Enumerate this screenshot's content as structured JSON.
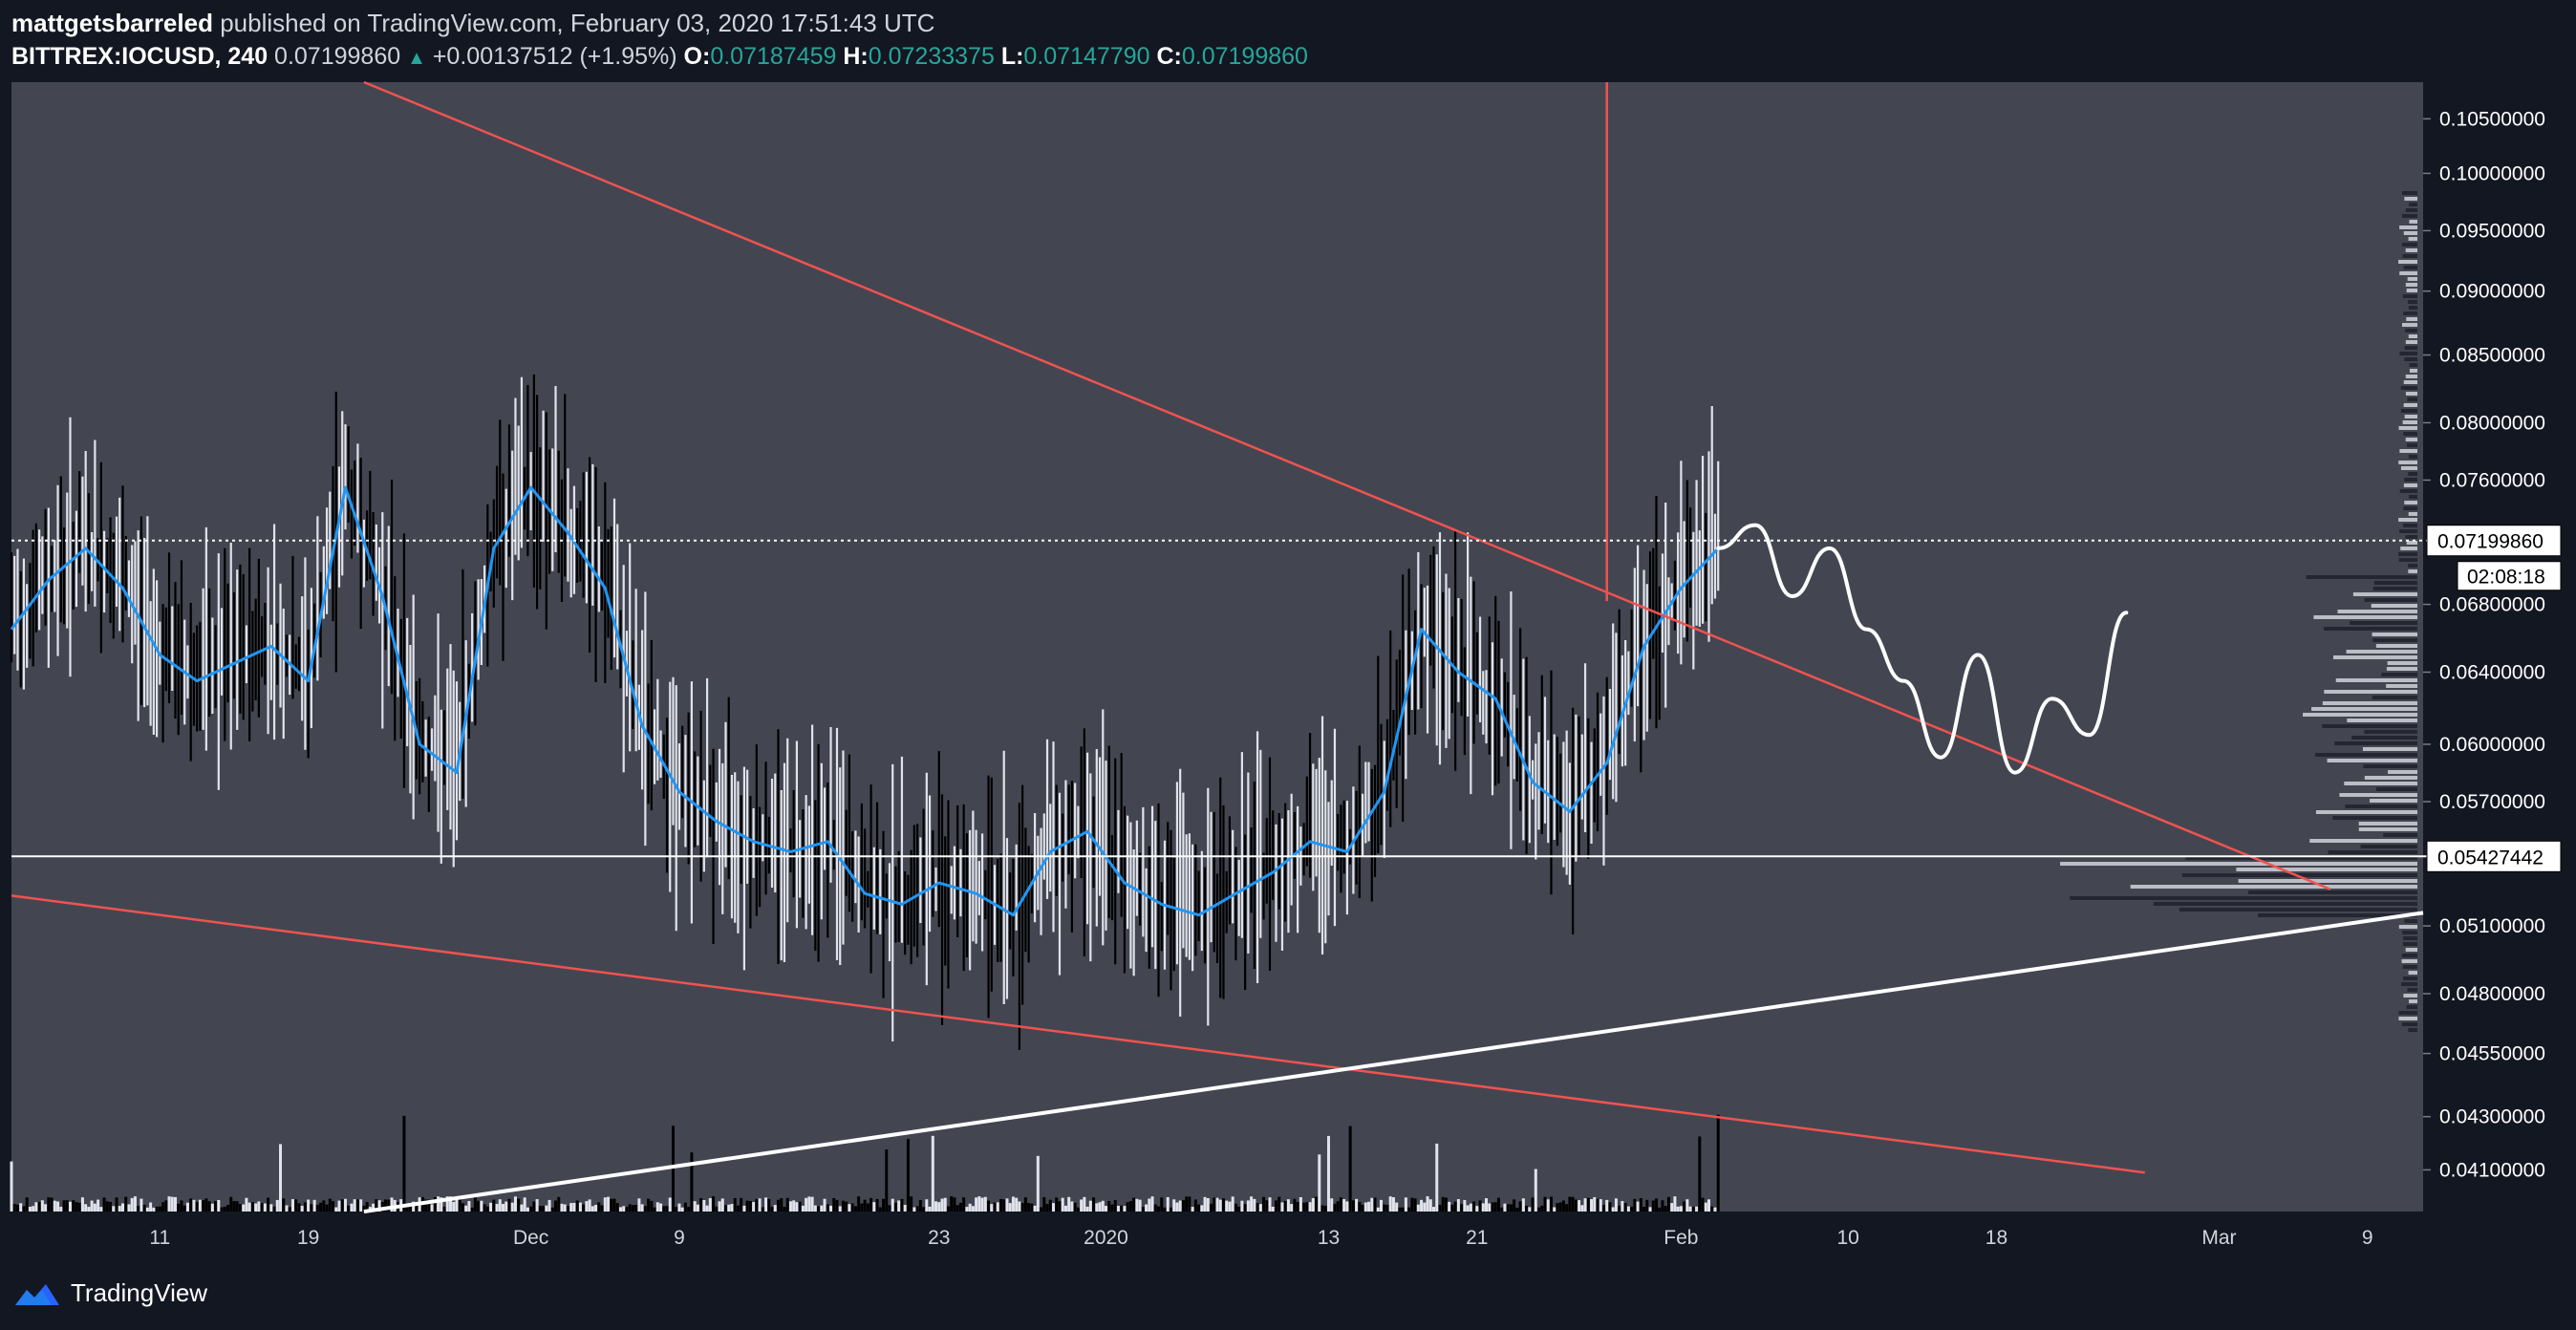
{
  "header": {
    "author": "mattgetsbarreled",
    "published": " published on TradingView.com, February 03, 2020 17:51:43 UTC",
    "symbol": "BITTREX:IOCUSD",
    "interval": ", 240",
    "last": " 0.07199860 ",
    "change": " +0.00137512 (+1.95%) ",
    "open_label": "O:",
    "open": "0.07187459",
    "high_label": "H:",
    "high": "0.07233375",
    "low_label": "L:",
    "low": "0.07147790",
    "close_label": "C:",
    "close": "0.07199860"
  },
  "footer": {
    "brand": "TradingView"
  },
  "colors": {
    "plot_bg": "#434651",
    "page_bg": "#131722",
    "ma_line": "#2196f3",
    "trendline_red": "#ef5350",
    "forecast": "#ffffff",
    "accent_up": "#26a69a"
  },
  "chart_data": {
    "type": "line",
    "y_axis": {
      "scale": "log",
      "range": [
        0.0395,
        0.1085
      ],
      "ticks": [
        "0.10500000",
        "0.10000000",
        "0.09500000",
        "0.09000000",
        "0.08500000",
        "0.08000000",
        "0.07600000",
        "0.06800000",
        "0.06400000",
        "0.06000000",
        "0.05700000",
        "0.05100000",
        "0.04800000",
        "0.04550000",
        "0.04300000",
        "0.04100000"
      ]
    },
    "x_axis": {
      "range": [
        "2019-11-03",
        "2020-03-12"
      ],
      "ticks": [
        {
          "label": "11",
          "date": "2019-11-11"
        },
        {
          "label": "19",
          "date": "2019-11-19"
        },
        {
          "label": "Dec",
          "date": "2019-12-01"
        },
        {
          "label": "9",
          "date": "2019-12-09"
        },
        {
          "label": "23",
          "date": "2019-12-23"
        },
        {
          "label": "2020",
          "date": "2020-01-01"
        },
        {
          "label": "13",
          "date": "2020-01-13"
        },
        {
          "label": "21",
          "date": "2020-01-21"
        },
        {
          "label": "Feb",
          "date": "2020-02-01"
        },
        {
          "label": "10",
          "date": "2020-02-10"
        },
        {
          "label": "18",
          "date": "2020-02-18"
        },
        {
          "label": "Mar",
          "date": "2020-03-01"
        },
        {
          "label": "9",
          "date": "2020-03-09"
        }
      ]
    },
    "price_lines": [
      {
        "value": 0.0719986,
        "label": "0.07199860",
        "style": "dotted"
      },
      {
        "value": 0.05427442,
        "label": "0.05427442",
        "style": "solid"
      }
    ],
    "countdown": "02:08:18",
    "series": [
      {
        "type": "ma",
        "color": "#2196f3",
        "x": [
          "2019-11-03",
          "2019-11-05",
          "2019-11-07",
          "2019-11-09",
          "2019-11-11",
          "2019-11-13",
          "2019-11-15",
          "2019-11-17",
          "2019-11-19",
          "2019-11-21",
          "2019-11-23",
          "2019-11-25",
          "2019-11-27",
          "2019-11-29",
          "2019-12-01",
          "2019-12-03",
          "2019-12-05",
          "2019-12-07",
          "2019-12-09",
          "2019-12-11",
          "2019-12-13",
          "2019-12-15",
          "2019-12-17",
          "2019-12-19",
          "2019-12-21",
          "2019-12-23",
          "2019-12-25",
          "2019-12-27",
          "2019-12-29",
          "2019-12-31",
          "2020-01-02",
          "2020-01-04",
          "2020-01-06",
          "2020-01-08",
          "2020-01-10",
          "2020-01-12",
          "2020-01-14",
          "2020-01-16",
          "2020-01-18",
          "2020-01-20",
          "2020-01-22",
          "2020-01-24",
          "2020-01-26",
          "2020-01-28",
          "2020-01-30",
          "2020-02-01",
          "2020-02-03"
        ],
        "y": [
          0.0665,
          0.0695,
          0.0715,
          0.069,
          0.065,
          0.0635,
          0.0645,
          0.0655,
          0.0635,
          0.0755,
          0.0685,
          0.06,
          0.0585,
          0.0715,
          0.0755,
          0.0725,
          0.069,
          0.061,
          0.0575,
          0.056,
          0.055,
          0.0545,
          0.055,
          0.0525,
          0.052,
          0.053,
          0.0525,
          0.0515,
          0.0545,
          0.0555,
          0.053,
          0.052,
          0.0515,
          0.0525,
          0.0535,
          0.055,
          0.0545,
          0.0575,
          0.0665,
          0.064,
          0.0625,
          0.058,
          0.0565,
          0.059,
          0.0655,
          0.069,
          0.0715
        ]
      },
      {
        "type": "trendline",
        "name": "",
        "color": "#ef5350",
        "x": [
          "2019-11-22",
          "2020-03-07"
        ],
        "y": [
          0.1085,
          0.0527
        ]
      },
      {
        "type": "trendline",
        "color": "#ef5350",
        "x": [
          "2019-11-03",
          "2020-02-26"
        ],
        "y": [
          0.0524,
          0.0409
        ]
      },
      {
        "type": "trendline",
        "color": "#ef5350",
        "x": [
          "2020-01-28",
          "2020-01-28"
        ],
        "y": [
          0.0682,
          0.1085
        ]
      },
      {
        "type": "trendline",
        "color": "#ffffff",
        "x": [
          "2019-11-22",
          "2020-03-12"
        ],
        "y": [
          0.0395,
          0.0516
        ]
      },
      {
        "type": "forecast",
        "color": "#ffffff",
        "x": [
          "2020-02-03",
          "2020-02-05",
          "2020-02-07",
          "2020-02-09",
          "2020-02-11",
          "2020-02-13",
          "2020-02-15",
          "2020-02-17",
          "2020-02-19",
          "2020-02-21",
          "2020-02-23",
          "2020-02-25"
        ],
        "y": [
          0.0715,
          0.073,
          0.0685,
          0.0715,
          0.0665,
          0.0635,
          0.0593,
          0.065,
          0.0585,
          0.0625,
          0.0605,
          0.0675
        ]
      }
    ]
  }
}
